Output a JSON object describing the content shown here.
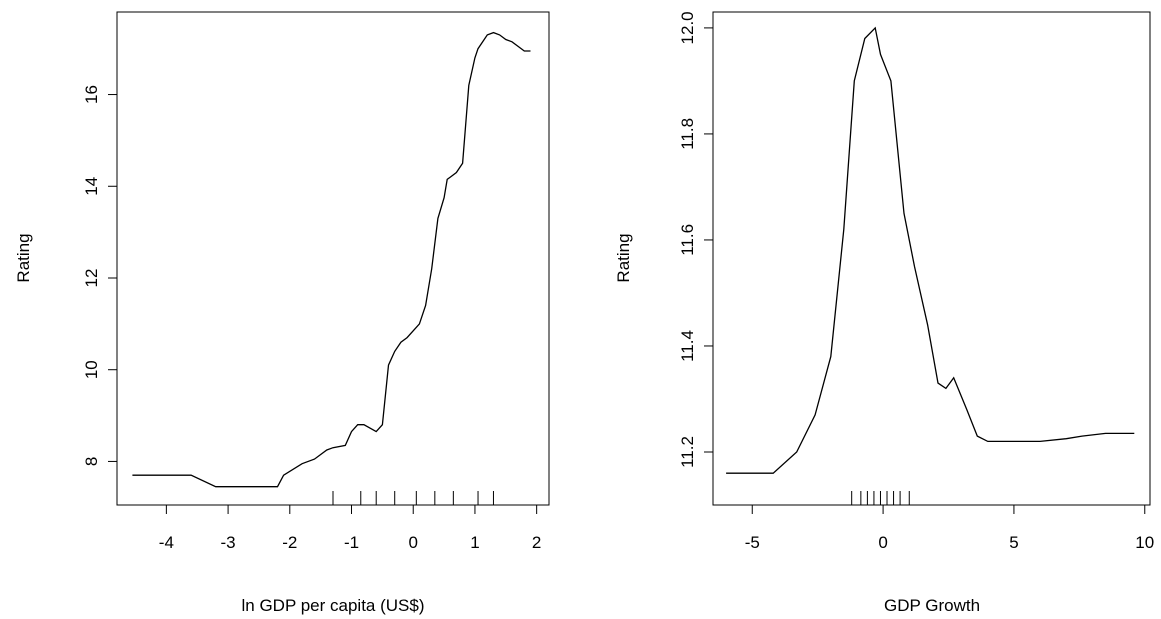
{
  "chart_data": [
    {
      "type": "line",
      "title": "",
      "xlabel": "ln GDP per capita (US$)",
      "ylabel": "Rating",
      "xlim": [
        -4.8,
        2.2
      ],
      "ylim": [
        7.05,
        17.8
      ],
      "xticks": [
        -4,
        -3,
        -2,
        -1,
        0,
        1,
        2
      ],
      "yticks": [
        8,
        10,
        12,
        14,
        16
      ],
      "xtick_labels": [
        "-4",
        "-3",
        "-2",
        "-1",
        "0",
        "1",
        "2"
      ],
      "ytick_labels": [
        "8",
        "10",
        "12",
        "14",
        "16"
      ],
      "grid": false,
      "x": [
        -4.55,
        -3.6,
        -3.2,
        -2.2,
        -2.1,
        -1.8,
        -1.6,
        -1.4,
        -1.3,
        -1.1,
        -1.0,
        -0.9,
        -0.8,
        -0.6,
        -0.5,
        -0.4,
        -0.3,
        -0.2,
        -0.1,
        0.1,
        0.2,
        0.3,
        0.4,
        0.5,
        0.55,
        0.6,
        0.7,
        0.8,
        0.9,
        1.0,
        1.05,
        1.2,
        1.3,
        1.4,
        1.5,
        1.6,
        1.7,
        1.8,
        1.9
      ],
      "y": [
        7.7,
        7.7,
        7.45,
        7.45,
        7.7,
        7.95,
        8.05,
        8.25,
        8.3,
        8.35,
        8.65,
        8.8,
        8.8,
        8.65,
        8.8,
        10.1,
        10.4,
        10.6,
        10.7,
        11.0,
        11.4,
        12.2,
        13.3,
        13.75,
        14.15,
        14.2,
        14.3,
        14.5,
        16.2,
        16.8,
        17.0,
        17.3,
        17.35,
        17.3,
        17.2,
        17.15,
        17.05,
        16.95,
        16.95
      ],
      "rug": [
        -1.3,
        -0.85,
        -0.6,
        -0.3,
        0.05,
        0.35,
        0.65,
        1.05,
        1.3
      ]
    },
    {
      "type": "line",
      "title": "",
      "xlabel": "GDP Growth",
      "ylabel": "Rating",
      "xlim": [
        -6.5,
        10.2
      ],
      "ylim": [
        11.1,
        12.03
      ],
      "xticks": [
        -5,
        0,
        5,
        10
      ],
      "yticks": [
        11.2,
        11.4,
        11.6,
        11.8,
        12.0
      ],
      "xtick_labels": [
        "-5",
        "0",
        "5",
        "10"
      ],
      "ytick_labels": [
        "11.2",
        "11.4",
        "11.6",
        "11.8",
        "12.0"
      ],
      "grid": false,
      "x": [
        -6.0,
        -4.2,
        -3.3,
        -2.6,
        -2.0,
        -1.5,
        -1.1,
        -0.7,
        -0.3,
        -0.1,
        0.3,
        0.8,
        1.2,
        1.7,
        2.1,
        2.4,
        2.7,
        3.2,
        3.6,
        4.0,
        4.5,
        5.0,
        6.0,
        7.0,
        7.6,
        8.5,
        9.6
      ],
      "y": [
        11.16,
        11.16,
        11.2,
        11.27,
        11.38,
        11.62,
        11.9,
        11.98,
        12.0,
        11.95,
        11.9,
        11.65,
        11.55,
        11.44,
        11.33,
        11.32,
        11.34,
        11.28,
        11.23,
        11.22,
        11.22,
        11.22,
        11.22,
        11.225,
        11.23,
        11.235,
        11.235
      ],
      "rug": [
        -1.2,
        -0.85,
        -0.6,
        -0.35,
        -0.1,
        0.15,
        0.4,
        0.65,
        1.0
      ]
    }
  ]
}
